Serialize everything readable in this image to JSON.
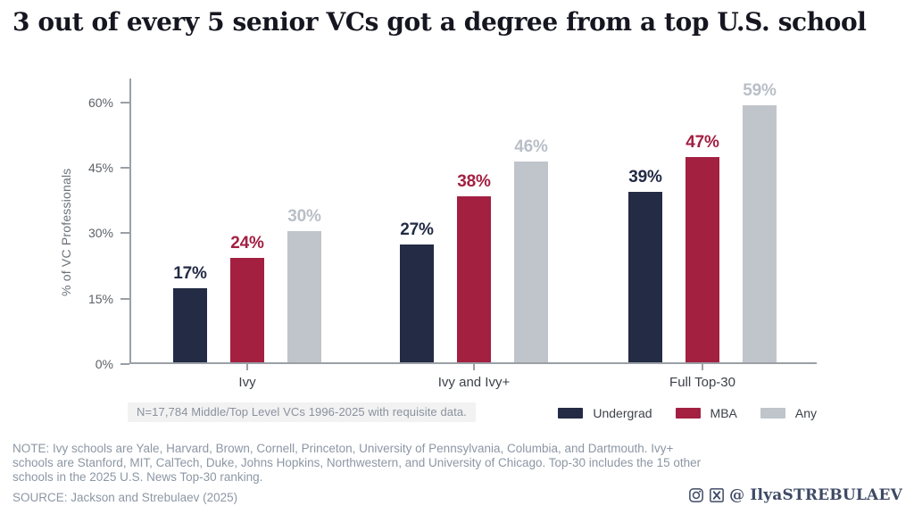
{
  "title": "3 out of every 5 senior VCs got a degree from a top U.S. school",
  "chart_data": {
    "type": "bar",
    "title": "3 out of every 5 senior VCs got a degree from a top U.S. school",
    "ylabel": "% of VC Professionals",
    "xlabel": "",
    "categories": [
      "Ivy",
      "Ivy and Ivy+",
      "Full Top-30"
    ],
    "series": [
      {
        "name": "Undergrad",
        "color": "#232b45",
        "label_color": "#232b45",
        "values": [
          17,
          27,
          39
        ]
      },
      {
        "name": "MBA",
        "color": "#a32041",
        "label_color": "#a32041",
        "values": [
          24,
          38,
          47
        ]
      },
      {
        "name": "Any",
        "color": "#c0c5cb",
        "label_color": "#b9bfc7",
        "values": [
          30,
          46,
          59
        ]
      }
    ],
    "unit": "%",
    "yticks": [
      0,
      15,
      30,
      45,
      60
    ],
    "ylim": [
      0,
      65
    ],
    "grid": false,
    "legend_position": "bottom-right",
    "axis_color": "#9aa0a6",
    "tick_label_color": "#5c6168",
    "category_label_color": "#3c414a"
  },
  "annotation": {
    "n_note": "N=17,784 Middle/Top Level VCs 1996-2025 with requisite data."
  },
  "footer": {
    "note": "NOTE: Ivy schools are Yale, Harvard, Brown, Cornell, Princeton, University of Pennsylvania, Columbia, and Dartmouth. Ivy+ schools are Stanford, MIT, CalTech, Duke, Johns Hopkins, Northwestern, and University of Chicago. Top-30 includes the 15 other schools in the 2025 U.S. News Top-30 ranking.",
    "source": "SOURCE: Jackson and Strebulaev (2025)",
    "social_handle": "@ IlyaSTREBULAEV",
    "icons": [
      "instagram-icon",
      "x-icon"
    ]
  }
}
